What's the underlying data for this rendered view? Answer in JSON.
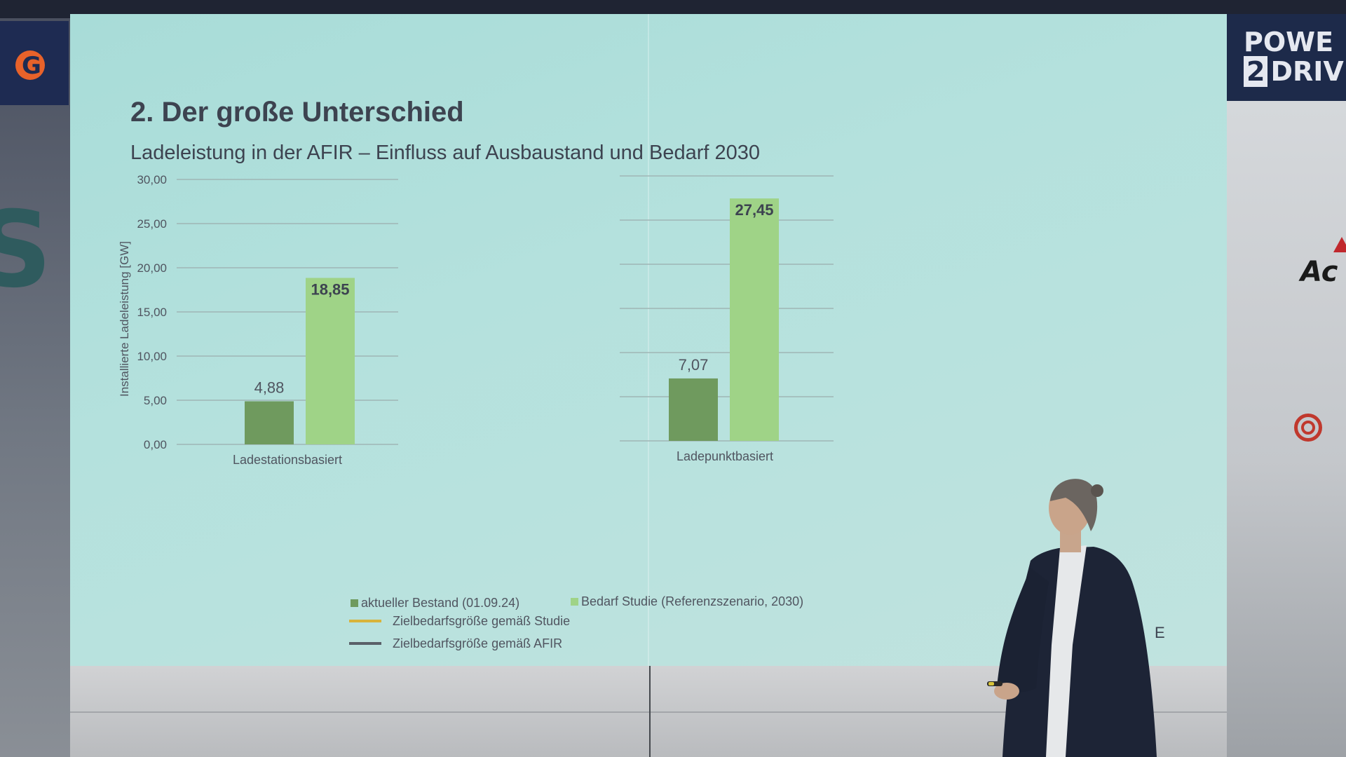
{
  "slide": {
    "title": "2. Der große Unterschied",
    "subtitle": "Ladeleistung in der AFIR – Einfluss auf Ausbaustand und Bedarf 2030",
    "corner_text": "E"
  },
  "branding": {
    "right_top_line1": "POWE",
    "right_top_line2": "DRIV",
    "right_top_badge": "2",
    "right_mid": "Ac",
    "left_top_letter": "G",
    "left_big_letter": "S"
  },
  "colors": {
    "bestand": "#6f9a5e",
    "bedarf": "#9fd387",
    "zielbedarf_studie": "#d8b33a",
    "zielbedarf_afir": "#5a6068",
    "gridline": "#9fb6b5",
    "text": "#505560"
  },
  "legend": {
    "items": [
      {
        "label": "aktueller Bestand (01.09.24)",
        "type": "square",
        "color_key": "bestand"
      },
      {
        "label": "Bedarf Studie (Referenzszenario, 2030)",
        "type": "square",
        "color_key": "bedarf"
      },
      {
        "label": "Zielbedarfsgröße gemäß Studie",
        "type": "line",
        "color_key": "zielbedarf_studie"
      },
      {
        "label": "Zielbedarfsgröße gemäß AFIR",
        "type": "line",
        "color_key": "zielbedarf_afir"
      }
    ]
  },
  "chart_data": [
    {
      "type": "bar",
      "ylabel": "Installierte Ladeleistung [GW]",
      "ylim": [
        0,
        30
      ],
      "yticks": [
        "0,00",
        "5,00",
        "10,00",
        "15,00",
        "20,00",
        "25,00",
        "30,00"
      ],
      "categories": [
        "Ladestationsbasiert"
      ],
      "series": [
        {
          "name": "aktueller Bestand (01.09.24)",
          "values": [
            4.88
          ],
          "labels": [
            "4,88"
          ]
        },
        {
          "name": "Bedarf Studie (Referenzszenario, 2030)",
          "values": [
            18.85
          ],
          "labels": [
            "18,85"
          ]
        }
      ],
      "grid": true
    },
    {
      "type": "bar",
      "ylim": [
        0,
        30
      ],
      "categories": [
        "Ladepunktbasiert"
      ],
      "series": [
        {
          "name": "aktueller Bestand (01.09.24)",
          "values": [
            7.07
          ],
          "labels": [
            "7,07"
          ]
        },
        {
          "name": "Bedarf Studie (Referenzszenario, 2030)",
          "values": [
            27.45
          ],
          "labels": [
            "27,45"
          ]
        }
      ],
      "grid": true
    }
  ]
}
